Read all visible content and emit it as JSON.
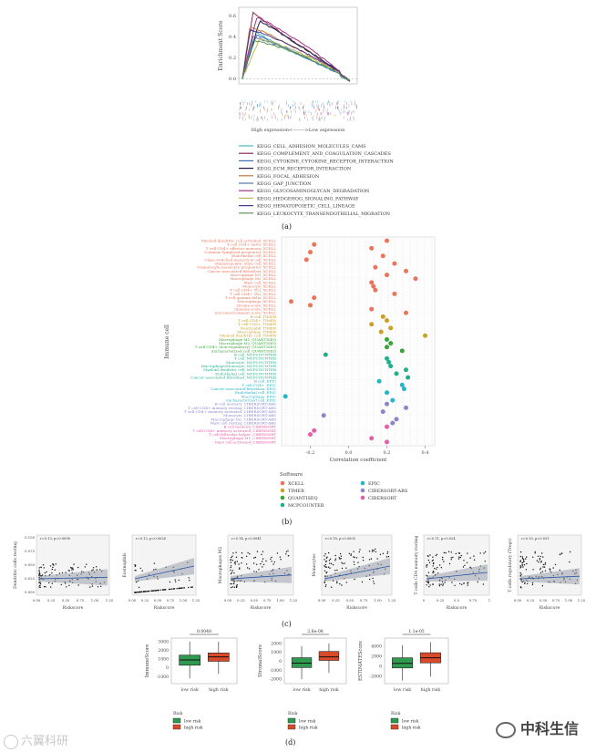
{
  "panel_labels": [
    "(a)",
    "(b)",
    "(c)",
    "(d)"
  ],
  "watermarks": {
    "left": "六翼科研",
    "right": "中科生信"
  },
  "chart_data": [
    {
      "type": "line",
      "panel": "(a)",
      "ylabel": "Enrichment Score",
      "xlabel": "High expression<-------->Low expression",
      "yticks": [
        "0.6",
        "0.4",
        "0.2",
        "0.0"
      ],
      "ylim": [
        -0.05,
        0.68
      ],
      "colors": [
        "#4bb7c6",
        "#8b2a5e",
        "#3a74b7",
        "#1c1c3e",
        "#c17a3a",
        "#5878a8",
        "#a23288",
        "#c4b45a",
        "#4a3a8a",
        "#5a9a52"
      ],
      "series": [
        {
          "name": "KEGG_CELL_ADHESION_MOLECULES_CAMS",
          "peak": 0.48
        },
        {
          "name": "KEGG_COMPLEMENT_AND_COAGULATION_CASCADES",
          "peak": 0.63
        },
        {
          "name": "KEGG_CYTOKINE_CYTOKINE_RECEPTOR_INTERACTION",
          "peak": 0.42
        },
        {
          "name": "KEGG_ECM_RECEPTOR_INTERACTION",
          "peak": 0.55
        },
        {
          "name": "KEGG_FOCAL_ADHESION",
          "peak": 0.5
        },
        {
          "name": "KEGG_GAP_JUNCTION",
          "peak": 0.4
        },
        {
          "name": "KEGG_GLYCOSAMINOGLYCAN_DEGRADATION",
          "peak": 0.58
        },
        {
          "name": "KEGG_HEDGEHOG_SIGNALING_PATHWAY",
          "peak": 0.38
        },
        {
          "name": "KEGG_HEMATOPOIETIC_CELL_LINEAGE",
          "peak": 0.46
        },
        {
          "name": "KEGG_LEUKOCYTE_TRANSENDOTHELIAL_MIGRATION",
          "peak": 0.36
        }
      ]
    },
    {
      "type": "scatter",
      "panel": "(b)",
      "ylabel": "Immune cell",
      "xlabel": "Correlation coefficient",
      "xticks": [
        "-0.2",
        "0.0",
        "0.2",
        "0.4"
      ],
      "xlim": [
        -0.35,
        0.45
      ],
      "legend_title": "Software",
      "software": [
        "XCELL",
        "TIMER",
        "QUANTISEQ",
        "MCPCOUNTER",
        "EPIC",
        "CIBERSORT-ABS",
        "CIBERSORT"
      ],
      "software_colors": [
        "#e8755c",
        "#c8a02a",
        "#3aa33a",
        "#22b08a",
        "#23b5c8",
        "#8a86c8",
        "#e060a8"
      ],
      "rows": [
        {
          "label": "Myeloid dendritic cell activated_XCELL",
          "s": 0,
          "v": 0.2
        },
        {
          "label": "T cell CD4+ naive_XCELL",
          "s": 0,
          "v": -0.18
        },
        {
          "label": "T cell CD4+ effector memory_XCELL",
          "s": 0,
          "v": 0.12
        },
        {
          "label": "Common lymphoid progenitor_XCELL",
          "s": 0,
          "v": -0.2
        },
        {
          "label": "Endothelial cell_XCELL",
          "s": 0,
          "v": 0.18
        },
        {
          "label": "Class-switched memory B cell_XCELL",
          "s": 0,
          "v": -0.22
        },
        {
          "label": "Hematopoietic stem cell_XCELL",
          "s": 0,
          "v": 0.24
        },
        {
          "label": "Granulocyte-monocyte progenitor_XCELL",
          "s": 0,
          "v": 0.14
        },
        {
          "label": "Cancer associated fibroblast_XCELL",
          "s": 0,
          "v": 0.3
        },
        {
          "label": "Macrophage M1_XCELL",
          "s": 0,
          "v": 0.2
        },
        {
          "label": "Macrophage M2_XCELL",
          "s": 0,
          "v": 0.35
        },
        {
          "label": "Mast cell_XCELL",
          "s": 0,
          "v": 0.12
        },
        {
          "label": "Monocyte_XCELL",
          "s": 0,
          "v": 0.13
        },
        {
          "label": "T cell CD4+ Th1_XCELL",
          "s": 0,
          "v": 0.14
        },
        {
          "label": "T cell CD4+ Th2_XCELL",
          "s": 0,
          "v": 0.24
        },
        {
          "label": "T cell gamma delta_XCELL",
          "s": 0,
          "v": -0.18
        },
        {
          "label": "Macrophage_XCELL",
          "s": 0,
          "v": -0.3
        },
        {
          "label": "stroma score_XCELL",
          "s": 0,
          "v": -0.2
        },
        {
          "label": "immune score_XCELL",
          "s": 0,
          "v": 0.12
        },
        {
          "label": "microenvironment score_XCELL",
          "s": 0,
          "v": 0.3
        },
        {
          "label": "B cell_TIMER",
          "s": 1,
          "v": 0.18
        },
        {
          "label": "T cell CD4+_TIMER",
          "s": 1,
          "v": 0.2
        },
        {
          "label": "T cell CD8+_TIMER",
          "s": 1,
          "v": 0.12
        },
        {
          "label": "Neutrophil_TIMER",
          "s": 1,
          "v": 0.22
        },
        {
          "label": "Macrophage_TIMER",
          "s": 1,
          "v": 0.17
        },
        {
          "label": "Myeloid dendritic cell_TIMER",
          "s": 1,
          "v": 0.4
        },
        {
          "label": "Macrophage M1_QUANTISEQ",
          "s": 2,
          "v": 0.2
        },
        {
          "label": "Macrophage M2_QUANTISEQ",
          "s": 2,
          "v": 0.22
        },
        {
          "label": "T cell CD4+ (non-regulatory)_QUANTISEQ",
          "s": 2,
          "v": 0.2
        },
        {
          "label": "uncharacterized cell_QUANTISEQ",
          "s": 2,
          "v": 0.28
        },
        {
          "label": "B cell_MCPCOUNTER",
          "s": 3,
          "v": -0.12
        },
        {
          "label": "T cell_MCPCOUNTER",
          "s": 3,
          "v": 0.2
        },
        {
          "label": "Monocyte_MCPCOUNTER",
          "s": 3,
          "v": 0.21
        },
        {
          "label": "Macrophage/Monocyte_MCPCOUNTER",
          "s": 3,
          "v": 0.22
        },
        {
          "label": "Myeloid dendritic cell_MCPCOUNTER",
          "s": 3,
          "v": 0.3
        },
        {
          "label": "Endothelial cell_MCPCOUNTER",
          "s": 3,
          "v": 0.25
        },
        {
          "label": "Cancer associated fibroblast_MCPCOUNTER",
          "s": 3,
          "v": 0.31
        },
        {
          "label": "B cell_EPIC",
          "s": 4,
          "v": 0.16
        },
        {
          "label": "T cell CD4+_EPIC",
          "s": 4,
          "v": 0.28
        },
        {
          "label": "Cancer associated fibroblast_EPIC",
          "s": 4,
          "v": 0.29
        },
        {
          "label": "Endothelial cell_EPIC",
          "s": 4,
          "v": 0.2
        },
        {
          "label": "Macrophage_EPIC",
          "s": 4,
          "v": -0.33
        },
        {
          "label": "uncharacterized cell_EPIC",
          "s": 4,
          "v": 0.23
        },
        {
          "label": "B cell memory_CIBERSORT-ABS",
          "s": 5,
          "v": 0.2
        },
        {
          "label": "T cell CD4+ memory resting_CIBERSORT-ABS",
          "s": 5,
          "v": 0.3
        },
        {
          "label": "T cell CD4+ memory activated_CIBERSORT-ABS",
          "s": 5,
          "v": 0.18
        },
        {
          "label": "Monocyte_CIBERSORT-ABS",
          "s": 5,
          "v": -0.13
        },
        {
          "label": "Macrophage M2_CIBERSORT-ABS",
          "s": 5,
          "v": 0.25
        },
        {
          "label": "Mast cell resting_CIBERSORT-ABS",
          "s": 5,
          "v": 0.23
        },
        {
          "label": "B cell memory_CIBERSORT",
          "s": 6,
          "v": 0.2
        },
        {
          "label": "T cell CD4+ memory activated_CIBERSORT",
          "s": 6,
          "v": -0.18
        },
        {
          "label": "T cell follicular helper_CIBERSORT",
          "s": 6,
          "v": -0.2
        },
        {
          "label": "Macrophage M1_CIBERSORT",
          "s": 6,
          "v": 0.12
        },
        {
          "label": "Mast cell activated_CIBERSORT",
          "s": 6,
          "v": 0.2
        }
      ]
    },
    {
      "type": "scatter",
      "panel": "(c)",
      "xlabel": "Riskscore",
      "plots": [
        {
          "ylabel": "Dendritic cells resting",
          "stat": "r=0.13, p=0.0098",
          "xticks": [
            "0.00",
            "0.25",
            "0.50",
            "0.75",
            "1.00",
            "1.25"
          ],
          "yticks": [
            "0.100",
            "0.075",
            "0.050",
            "0.025",
            "0.000"
          ],
          "slope": 0.012
        },
        {
          "ylabel": "Eosinophils",
          "stat": "r=0.12, p=0.0026",
          "xticks": [
            "0.00",
            "0.25",
            "0.50",
            "0.75",
            "1.00",
            "1.25"
          ],
          "yticks": [],
          "slope": 0.1
        },
        {
          "ylabel": "Macrophages M2",
          "stat": "r=0.14, p=0.0041",
          "xticks": [
            "0.00",
            "0.25",
            "0.50",
            "0.75",
            "1.00",
            "1.25"
          ],
          "yticks": [],
          "slope": 0.03
        },
        {
          "ylabel": "Monocytes",
          "stat": "r=0.18, p=0.0005",
          "xticks": [
            "0.00",
            "0.25",
            "0.50",
            "0.75",
            "1.00",
            "1.25"
          ],
          "yticks": [],
          "slope": 0.1
        },
        {
          "ylabel": "T cells CD4 memory resting",
          "stat": "r=0.11, p=0.024",
          "xticks": [
            "0",
            "0.25",
            "0.5",
            "0.75",
            "1"
          ],
          "yticks": [],
          "slope": 0.05
        },
        {
          "ylabel": "T cells regulatory (Tregs)",
          "stat": "r=0.10, p=0.031",
          "xticks": [
            "0.00",
            "0.25",
            "0.50",
            "0.75",
            "1.00",
            "1.25"
          ],
          "yticks": [],
          "slope": 0.02
        }
      ]
    },
    {
      "type": "box",
      "panel": "(d)",
      "categories": [
        "low risk",
        "high risk"
      ],
      "legend_title": "Risk",
      "colors": [
        "#2f9a4f",
        "#d84a2a"
      ],
      "plots": [
        {
          "ylabel": "ImmuneScore",
          "p": "0.0048",
          "yticks": [
            "3000",
            "2000",
            "1000",
            "0",
            "-1000"
          ],
          "ylim": [
            -1800,
            3400
          ],
          "boxes": [
            {
              "q1": 300,
              "med": 900,
              "q3": 1450,
              "wlo": -1200,
              "whi": 3000
            },
            {
              "q1": 750,
              "med": 1250,
              "q3": 1700,
              "wlo": -700,
              "whi": 3000
            }
          ]
        },
        {
          "ylabel": "StromalScore",
          "p": "2.6e-08",
          "yticks": [
            "2000",
            "1000",
            "0",
            "-1000",
            "-2000"
          ],
          "ylim": [
            -2500,
            2600
          ],
          "boxes": [
            {
              "q1": -700,
              "med": -200,
              "q3": 400,
              "wlo": -2000,
              "whi": 1700
            },
            {
              "q1": 100,
              "med": 500,
              "q3": 1100,
              "wlo": -1300,
              "whi": 2000
            }
          ]
        },
        {
          "ylabel": "ESTIMATEScore",
          "p": "1.1e-05",
          "yticks": [
            "4000",
            "2000",
            "0",
            "-2000"
          ],
          "ylim": [
            -3400,
            5600
          ],
          "boxes": [
            {
              "q1": -300,
              "med": 600,
              "q3": 1700,
              "wlo": -2800,
              "whi": 4200
            },
            {
              "q1": 700,
              "med": 1700,
              "q3": 2700,
              "wlo": -2000,
              "whi": 4800
            }
          ]
        }
      ]
    }
  ]
}
